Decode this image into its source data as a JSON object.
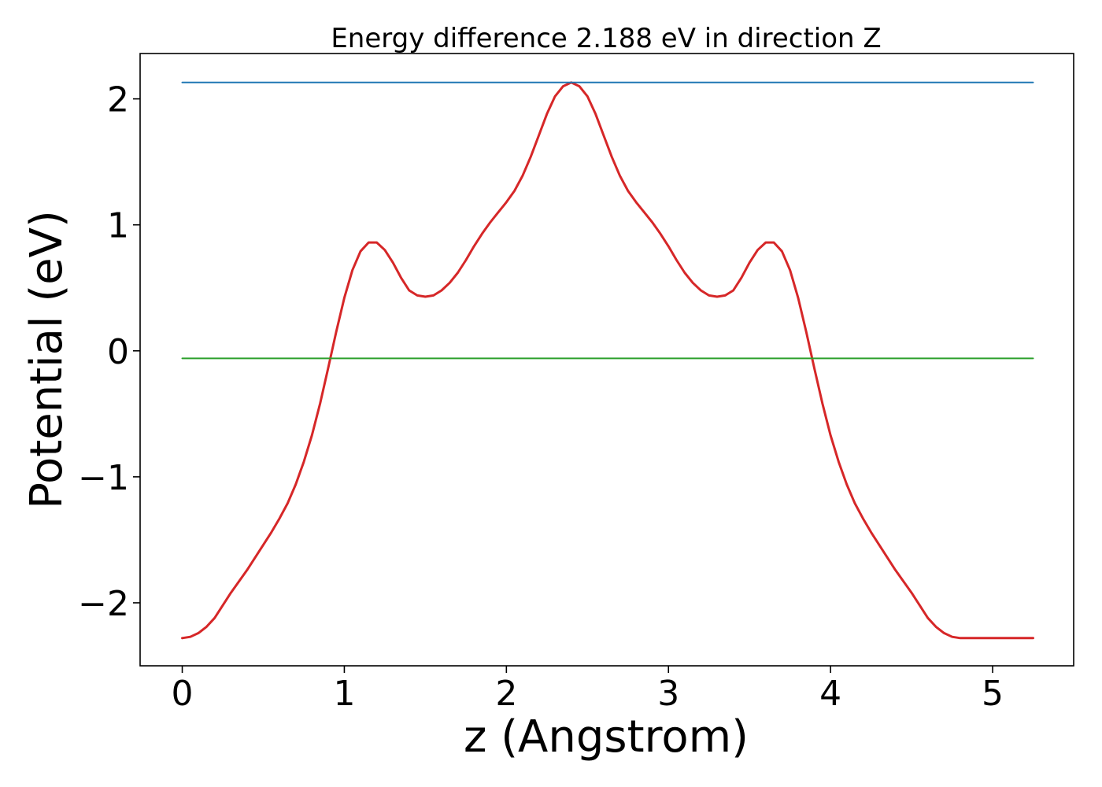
{
  "chart_data": {
    "type": "line",
    "title": "Energy difference 2.188 eV in direction Z",
    "xlabel": "z (Angstrom)",
    "ylabel": "Potential (eV)",
    "xlim": [
      -0.26,
      5.5
    ],
    "ylim": [
      -2.5,
      2.36
    ],
    "xticks": [
      0,
      1,
      2,
      3,
      4,
      5
    ],
    "xtick_labels": [
      "0",
      "1",
      "2",
      "3",
      "4",
      "5"
    ],
    "yticks": [
      -2,
      -1,
      0,
      1,
      2
    ],
    "ytick_labels": [
      "−2",
      "−1",
      "0",
      "1",
      "2"
    ],
    "grid": false,
    "series": [
      {
        "color": "#d62728",
        "x": [
          0.0,
          0.05,
          0.1,
          0.15,
          0.2,
          0.25,
          0.3,
          0.35,
          0.4,
          0.45,
          0.5,
          0.55,
          0.6,
          0.65,
          0.7,
          0.75,
          0.8,
          0.85,
          0.9,
          0.95,
          1.0,
          1.05,
          1.1,
          1.15,
          1.2,
          1.25,
          1.3,
          1.35,
          1.4,
          1.45,
          1.5,
          1.55,
          1.6,
          1.65,
          1.7,
          1.75,
          1.8,
          1.85,
          1.9,
          1.95,
          2.0,
          2.05,
          2.1,
          2.15,
          2.2,
          2.25,
          2.3,
          2.35,
          2.4,
          2.45,
          2.5,
          2.55,
          2.6,
          2.65,
          2.7,
          2.75,
          2.8,
          2.85,
          2.9,
          2.95,
          3.0,
          3.05,
          3.1,
          3.15,
          3.2,
          3.25,
          3.3,
          3.35,
          3.4,
          3.45,
          3.5,
          3.55,
          3.6,
          3.65,
          3.7,
          3.75,
          3.8,
          3.85,
          3.9,
          3.95,
          4.0,
          4.05,
          4.1,
          4.15,
          4.2,
          4.25,
          4.3,
          4.35,
          4.4,
          4.45,
          4.5,
          4.55,
          4.6,
          4.65,
          4.7,
          4.75,
          4.8,
          4.85,
          4.9,
          4.95,
          5.0,
          5.05,
          5.1,
          5.15,
          5.2,
          5.25
        ],
        "values": [
          -2.28,
          -2.27,
          -2.24,
          -2.19,
          -2.12,
          -2.02,
          -1.92,
          -1.83,
          -1.74,
          -1.64,
          -1.54,
          -1.44,
          -1.33,
          -1.21,
          -1.06,
          -0.88,
          -0.67,
          -0.42,
          -0.14,
          0.15,
          0.42,
          0.64,
          0.79,
          0.86,
          0.86,
          0.8,
          0.7,
          0.58,
          0.48,
          0.44,
          0.43,
          0.44,
          0.48,
          0.54,
          0.62,
          0.72,
          0.83,
          0.93,
          1.02,
          1.1,
          1.18,
          1.27,
          1.39,
          1.54,
          1.71,
          1.88,
          2.02,
          2.1,
          2.13,
          2.1,
          2.02,
          1.88,
          1.71,
          1.54,
          1.39,
          1.27,
          1.18,
          1.1,
          1.02,
          0.93,
          0.83,
          0.72,
          0.62,
          0.54,
          0.48,
          0.44,
          0.43,
          0.44,
          0.48,
          0.58,
          0.7,
          0.8,
          0.86,
          0.86,
          0.79,
          0.64,
          0.42,
          0.15,
          -0.14,
          -0.42,
          -0.67,
          -0.88,
          -1.06,
          -1.21,
          -1.33,
          -1.44,
          -1.54,
          -1.64,
          -1.74,
          -1.83,
          -1.92,
          -2.02,
          -2.12,
          -2.19,
          -2.24,
          -2.27,
          -2.28,
          -2.28,
          -2.28,
          -2.28,
          -2.28,
          -2.28,
          -2.28,
          -2.28,
          -2.28,
          -2.28
        ]
      },
      {
        "color": "#1f77b4",
        "x": [
          0.0,
          5.25
        ],
        "values": [
          2.13,
          2.13
        ]
      },
      {
        "color": "#2ca02c",
        "x": [
          0.0,
          5.25
        ],
        "values": [
          -0.06,
          -0.06
        ]
      }
    ]
  }
}
